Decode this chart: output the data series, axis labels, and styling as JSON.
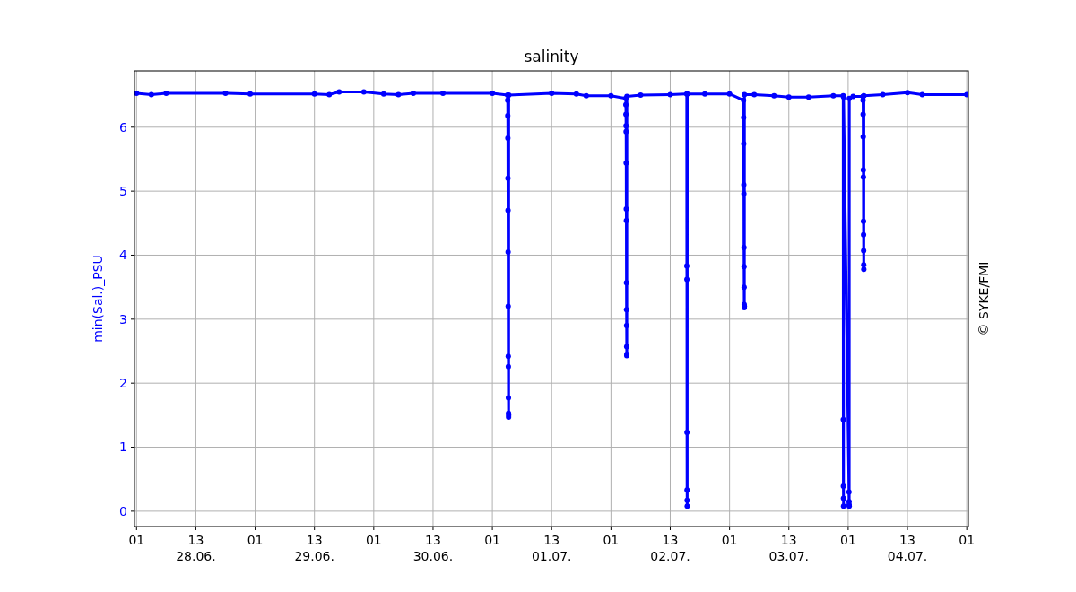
{
  "chart_data": {
    "type": "line",
    "title": "salinity",
    "ylabel": "min(Sal.)_PSU",
    "annotations": [
      "© SYKE/FMI"
    ],
    "xlim": [
      "--06-28T00:35",
      "--07-05T01:20"
    ],
    "ylim": [
      -0.24,
      6.88
    ],
    "yticks": [
      0,
      1,
      2,
      3,
      4,
      5,
      6
    ],
    "xticks": [
      {
        "value": "--06-28T01:00",
        "label": "01"
      },
      {
        "value": "--06-28T13:00",
        "label": "13\n28.06."
      },
      {
        "value": "--06-29T01:00",
        "label": "01"
      },
      {
        "value": "--06-29T13:00",
        "label": "13\n29.06."
      },
      {
        "value": "--06-30T01:00",
        "label": "01"
      },
      {
        "value": "--06-30T13:00",
        "label": "13\n30.06."
      },
      {
        "value": "--07-01T01:00",
        "label": "01"
      },
      {
        "value": "--07-01T13:00",
        "label": "13\n01.07."
      },
      {
        "value": "--07-02T01:00",
        "label": "01"
      },
      {
        "value": "--07-02T13:00",
        "label": "13\n02.07."
      },
      {
        "value": "--07-03T01:00",
        "label": "01"
      },
      {
        "value": "--07-03T13:00",
        "label": "13\n03.07."
      },
      {
        "value": "--07-04T01:00",
        "label": "01"
      },
      {
        "value": "--07-04T13:00",
        "label": "13\n04.07."
      },
      {
        "value": "--07-05T01:00",
        "label": "01"
      }
    ],
    "grid": true,
    "marker": "circle",
    "line_style": "solid",
    "series": [
      {
        "color": "#0000ff",
        "x": [
          "--06-28T01:00",
          "--06-28T04:00",
          "--06-28T07:00",
          "--06-28T19:00",
          "--06-29T00:00",
          "--06-29T13:00",
          "--06-29T16:00",
          "--06-29T18:00",
          "--06-29T23:00",
          "--06-30T03:00",
          "--06-30T06:00",
          "--06-30T09:00",
          "--06-30T15:00",
          "--07-01T01:00",
          "--07-01T04:05",
          "--07-01T04:06",
          "--07-01T04:07",
          "--07-01T04:08",
          "--07-01T04:09",
          "--07-01T04:10",
          "--07-01T04:11",
          "--07-01T04:12",
          "--07-01T04:13",
          "--07-01T04:14",
          "--07-01T04:15",
          "--07-01T04:16",
          "--07-01T04:17",
          "--07-01T04:18",
          "--07-01T04:19",
          "--07-01T13:00",
          "--07-01T18:00",
          "--07-01T20:00",
          "--07-02T01:00",
          "--07-02T04:00",
          "--07-02T04:01",
          "--07-02T04:02",
          "--07-02T04:03",
          "--07-02T04:04",
          "--07-02T04:05",
          "--07-02T04:06",
          "--07-02T04:07",
          "--07-02T04:08",
          "--07-02T04:09",
          "--07-02T04:10",
          "--07-02T04:11",
          "--07-02T04:12",
          "--07-02T04:13",
          "--07-02T04:14",
          "--07-02T07:00",
          "--07-02T13:00",
          "--07-02T16:20",
          "--07-02T16:21",
          "--07-02T16:22",
          "--07-02T16:23",
          "--07-02T16:24",
          "--07-02T16:25",
          "--07-02T16:26",
          "--07-02T16:27",
          "--07-02T20:00",
          "--07-03T01:00",
          "--07-03T03:50",
          "--07-03T03:51",
          "--07-03T03:52",
          "--07-03T03:53",
          "--07-03T03:54",
          "--07-03T03:55",
          "--07-03T03:56",
          "--07-03T03:57",
          "--07-03T03:58",
          "--07-03T03:59",
          "--07-03T04:00",
          "--07-03T04:01",
          "--07-03T06:00",
          "--07-03T10:00",
          "--07-03T13:00",
          "--07-03T17:00",
          "--07-03T22:00",
          "--07-04T00:00",
          "--07-04T00:01",
          "--07-04T00:02",
          "--07-04T00:03",
          "--07-04T00:04",
          "--07-04T00:05",
          "--07-04T01:10",
          "--07-04T01:11",
          "--07-04T01:12",
          "--07-04T01:13",
          "--07-04T01:14",
          "--07-04T02:00",
          "--07-04T04:00",
          "--07-04T04:01",
          "--07-04T04:02",
          "--07-04T04:03",
          "--07-04T04:04",
          "--07-04T04:05",
          "--07-04T04:06",
          "--07-04T04:07",
          "--07-04T04:08",
          "--07-04T04:09",
          "--07-04T04:10",
          "--07-04T04:11",
          "--07-04T08:00",
          "--07-04T13:00",
          "--07-04T16:00",
          "--07-05T01:00"
        ],
        "values": [
          6.53,
          6.51,
          6.53,
          6.53,
          6.52,
          6.52,
          6.51,
          6.55,
          6.55,
          6.52,
          6.51,
          6.53,
          6.53,
          6.53,
          6.5,
          6.42,
          6.18,
          5.83,
          5.2,
          4.7,
          4.05,
          3.2,
          2.42,
          2.26,
          1.77,
          1.53,
          1.47,
          1.5,
          6.5,
          6.53,
          6.52,
          6.49,
          6.49,
          6.45,
          6.35,
          6.2,
          6.02,
          5.93,
          5.44,
          4.72,
          4.54,
          3.57,
          3.15,
          2.9,
          2.57,
          2.43,
          2.45,
          6.48,
          6.5,
          6.51,
          6.52,
          3.83,
          3.62,
          1.23,
          0.33,
          0.17,
          0.08,
          6.52,
          6.52,
          6.52,
          6.42,
          6.15,
          5.74,
          5.1,
          4.96,
          4.12,
          3.82,
          3.5,
          3.23,
          3.18,
          3.2,
          6.51,
          6.51,
          6.49,
          6.47,
          6.47,
          6.49,
          6.49,
          1.43,
          0.39,
          0.2,
          0.08,
          6.47,
          0.3,
          0.15,
          0.1,
          0.08,
          6.45,
          6.48,
          6.48,
          6.42,
          6.2,
          5.85,
          5.33,
          5.22,
          4.53,
          4.32,
          4.07,
          3.85,
          3.78,
          6.49,
          6.51,
          6.54,
          6.51,
          6.51
        ]
      }
    ]
  }
}
